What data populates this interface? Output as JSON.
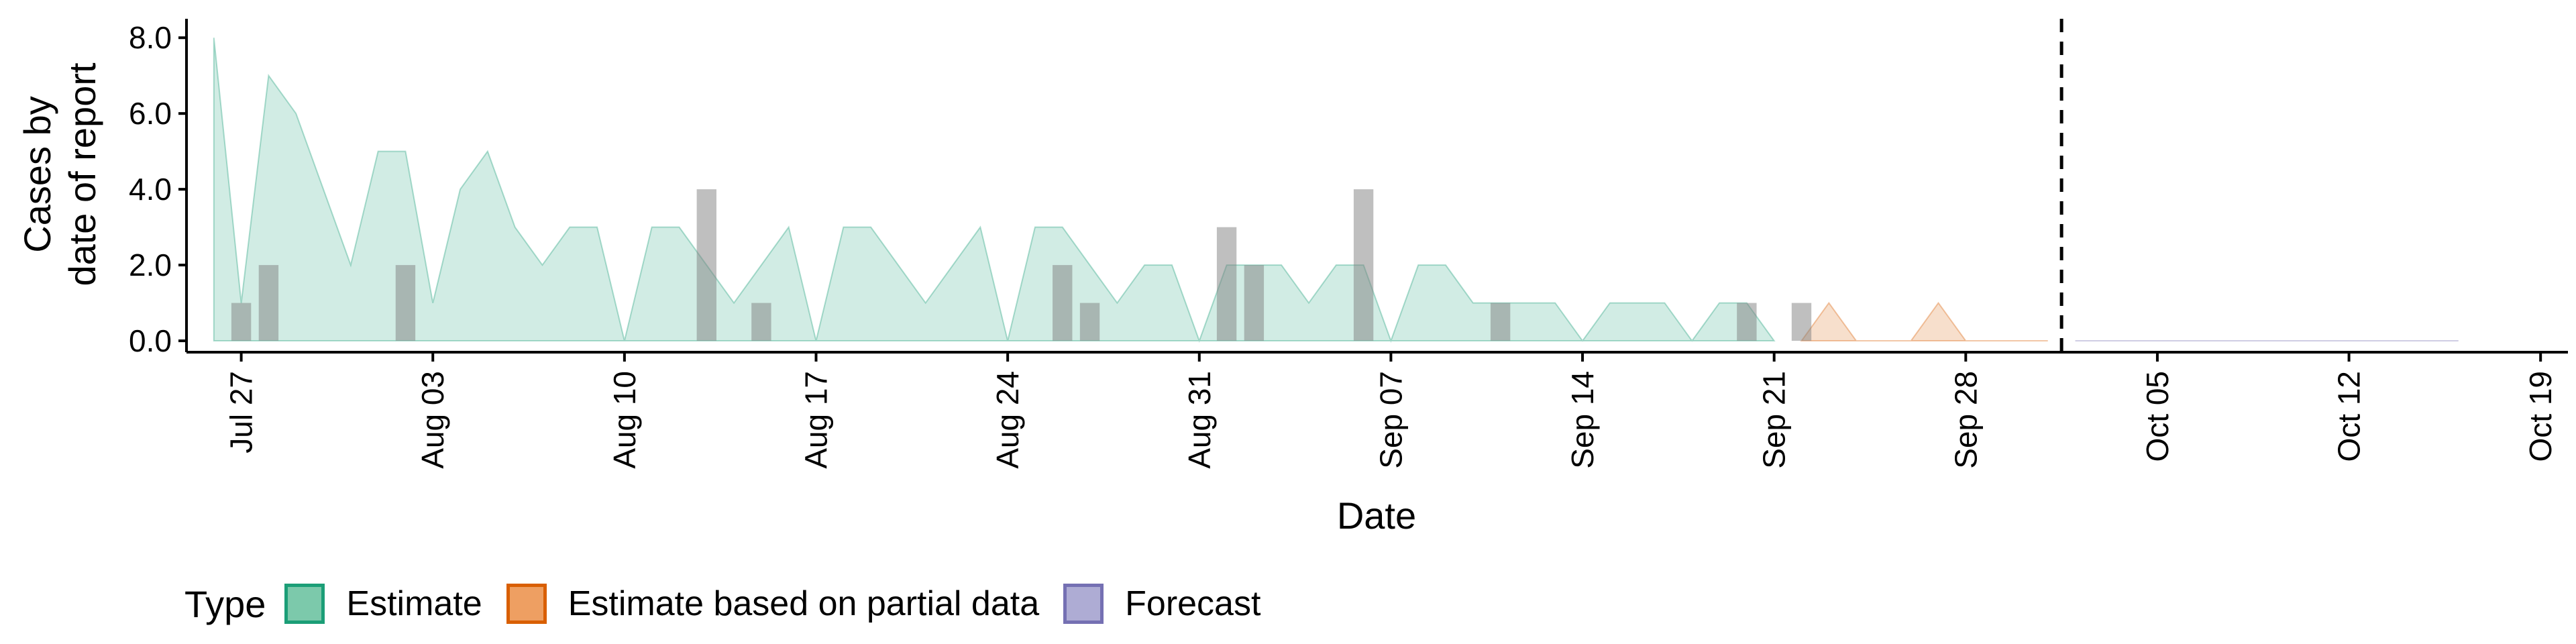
{
  "chart_data": {
    "type": "area",
    "xlabel": "Date",
    "ylabel": [
      "Cases by",
      "date of report"
    ],
    "xlim": [
      "2020-07-25",
      "2020-10-20"
    ],
    "ylim": [
      -0.3,
      8.5
    ],
    "yticks": [
      0,
      2,
      4,
      6,
      8
    ],
    "ytick_labels": [
      "0.0",
      "2.0",
      "4.0",
      "6.0",
      "8.0"
    ],
    "xticks": [
      "2020-07-27",
      "2020-08-03",
      "2020-08-10",
      "2020-08-17",
      "2020-08-24",
      "2020-08-31",
      "2020-09-07",
      "2020-09-14",
      "2020-09-21",
      "2020-09-28",
      "2020-10-05",
      "2020-10-12",
      "2020-10-19"
    ],
    "xtick_labels": [
      "Jul 27",
      "Aug 03",
      "Aug 10",
      "Aug 17",
      "Aug 24",
      "Aug 31",
      "Sep 07",
      "Sep 14",
      "Sep 21",
      "Sep 28",
      "Oct 05",
      "Oct 12",
      "Oct 19"
    ],
    "forecast_start": "2020-10-02",
    "grid": false,
    "legend_position": "bottom-left",
    "legend": {
      "title": "Type",
      "items": [
        {
          "label": "Estimate",
          "fill": "#7cc9ab",
          "stroke": "#1b9e77"
        },
        {
          "label": "Estimate based on partial data",
          "fill": "#ee9f62",
          "stroke": "#d95f02"
        },
        {
          "label": "Forecast",
          "fill": "#aeacd4",
          "stroke": "#7570b3"
        }
      ]
    },
    "series": [
      {
        "name": "Estimate",
        "color": "#1b9e77",
        "points": [
          [
            "2020-07-26",
            8
          ],
          [
            "2020-07-27",
            1
          ],
          [
            "2020-07-28",
            7
          ],
          [
            "2020-07-29",
            6
          ],
          [
            "2020-07-30",
            4
          ],
          [
            "2020-07-31",
            2
          ],
          [
            "2020-08-01",
            5
          ],
          [
            "2020-08-02",
            5
          ],
          [
            "2020-08-03",
            1
          ],
          [
            "2020-08-04",
            4
          ],
          [
            "2020-08-05",
            5
          ],
          [
            "2020-08-06",
            3
          ],
          [
            "2020-08-07",
            2
          ],
          [
            "2020-08-08",
            3
          ],
          [
            "2020-08-09",
            3
          ],
          [
            "2020-08-10",
            0
          ],
          [
            "2020-08-11",
            3
          ],
          [
            "2020-08-12",
            3
          ],
          [
            "2020-08-13",
            2
          ],
          [
            "2020-08-14",
            1
          ],
          [
            "2020-08-15",
            2
          ],
          [
            "2020-08-16",
            3
          ],
          [
            "2020-08-17",
            0
          ],
          [
            "2020-08-18",
            3
          ],
          [
            "2020-08-19",
            3
          ],
          [
            "2020-08-20",
            2
          ],
          [
            "2020-08-21",
            1
          ],
          [
            "2020-08-22",
            2
          ],
          [
            "2020-08-23",
            3
          ],
          [
            "2020-08-24",
            0
          ],
          [
            "2020-08-25",
            3
          ],
          [
            "2020-08-26",
            3
          ],
          [
            "2020-08-27",
            2
          ],
          [
            "2020-08-28",
            1
          ],
          [
            "2020-08-29",
            2
          ],
          [
            "2020-08-30",
            2
          ],
          [
            "2020-08-31",
            0
          ],
          [
            "2020-09-01",
            2
          ],
          [
            "2020-09-02",
            2
          ],
          [
            "2020-09-03",
            2
          ],
          [
            "2020-09-04",
            1
          ],
          [
            "2020-09-05",
            2
          ],
          [
            "2020-09-06",
            2
          ],
          [
            "2020-09-07",
            0
          ],
          [
            "2020-09-08",
            2
          ],
          [
            "2020-09-09",
            2
          ],
          [
            "2020-09-10",
            1
          ],
          [
            "2020-09-11",
            1
          ],
          [
            "2020-09-12",
            1
          ],
          [
            "2020-09-13",
            1
          ],
          [
            "2020-09-14",
            0
          ],
          [
            "2020-09-15",
            1
          ],
          [
            "2020-09-16",
            1
          ],
          [
            "2020-09-17",
            1
          ],
          [
            "2020-09-18",
            0
          ],
          [
            "2020-09-19",
            1
          ],
          [
            "2020-09-20",
            1
          ],
          [
            "2020-09-21",
            0
          ]
        ]
      },
      {
        "name": "Estimate based on partial data",
        "color": "#d95f02",
        "points": [
          [
            "2020-09-22",
            0
          ],
          [
            "2020-09-23",
            1
          ],
          [
            "2020-09-24",
            0
          ],
          [
            "2020-09-25",
            0
          ],
          [
            "2020-09-26",
            0
          ],
          [
            "2020-09-27",
            1
          ],
          [
            "2020-09-28",
            0
          ],
          [
            "2020-09-29",
            0
          ],
          [
            "2020-09-30",
            0
          ],
          [
            "2020-10-01",
            0
          ]
        ]
      },
      {
        "name": "Forecast",
        "color": "#7570b3",
        "points": [
          [
            "2020-10-02",
            0
          ],
          [
            "2020-10-16",
            0
          ]
        ]
      }
    ],
    "reported_cases": [
      [
        "2020-07-27",
        1
      ],
      [
        "2020-07-28",
        2
      ],
      [
        "2020-08-02",
        2
      ],
      [
        "2020-08-13",
        4
      ],
      [
        "2020-08-15",
        1
      ],
      [
        "2020-08-26",
        2
      ],
      [
        "2020-08-27",
        1
      ],
      [
        "2020-09-01",
        3
      ],
      [
        "2020-09-02",
        2
      ],
      [
        "2020-09-06",
        4
      ],
      [
        "2020-09-11",
        1
      ],
      [
        "2020-09-20",
        1
      ],
      [
        "2020-09-22",
        1
      ]
    ]
  }
}
